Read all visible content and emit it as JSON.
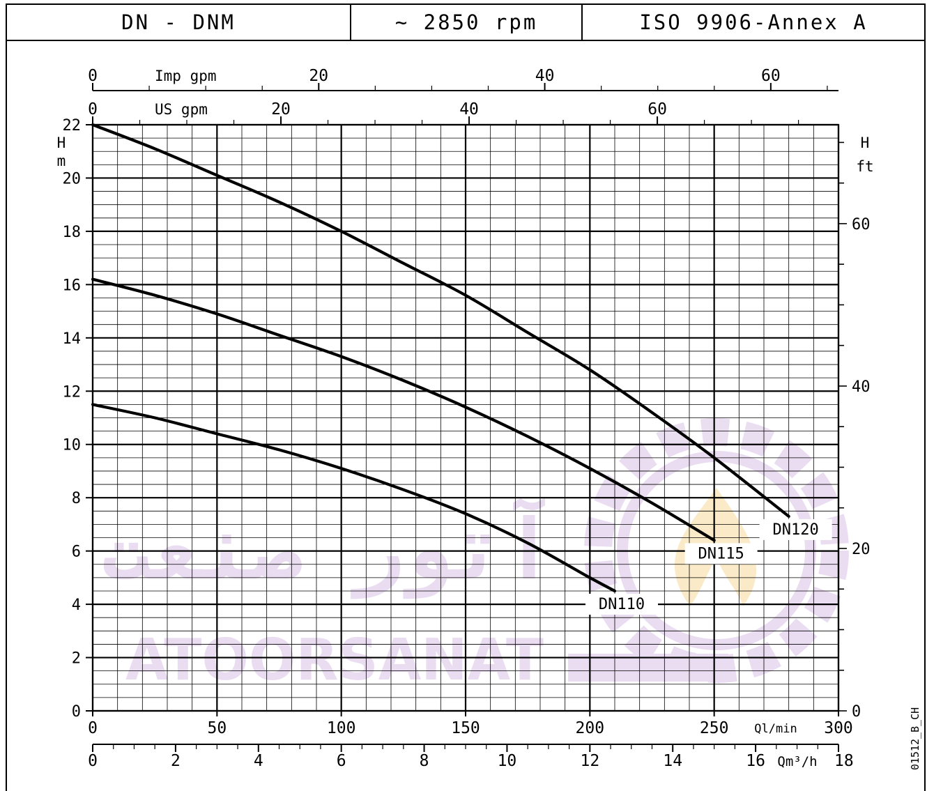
{
  "header": {
    "model": "DN - DNM",
    "speed": "~ 2850 rpm",
    "standard": "ISO 9906-Annex A"
  },
  "side_code": "01512_B_CH",
  "watermark": {
    "brand_latin": "ATOORSANAT",
    "brand_arabic": "آتور صنعت",
    "color": "#d9c2e6"
  },
  "chart_data": {
    "type": "line",
    "x_axes": {
      "qlmin": {
        "label": "Ql/min",
        "range": [
          0,
          300
        ],
        "ticks": [
          0,
          50,
          100,
          150,
          200,
          250,
          300
        ]
      },
      "qm3h": {
        "label": "Qm³/h",
        "range": [
          0,
          18
        ],
        "ticks": [
          0,
          2,
          4,
          6,
          8,
          10,
          12,
          14,
          16,
          18
        ]
      },
      "us_gpm": {
        "label": "US gpm",
        "ticks": [
          0,
          20,
          40,
          60
        ]
      },
      "imp_gpm": {
        "label": "Imp gpm",
        "ticks": [
          0,
          20,
          40,
          60
        ]
      }
    },
    "y_axes": {
      "h_m": {
        "label_top": "H",
        "label_unit": "m",
        "range": [
          0,
          22
        ],
        "ticks": [
          0,
          2,
          4,
          6,
          8,
          10,
          12,
          14,
          16,
          18,
          20,
          22
        ]
      },
      "h_ft": {
        "label_top": "H",
        "label_unit": "ft",
        "ticks": [
          0,
          20,
          40,
          60
        ]
      }
    },
    "grid": true,
    "series": [
      {
        "name": "DN110",
        "x": [
          0,
          25,
          50,
          75,
          100,
          125,
          150,
          175,
          200,
          210
        ],
        "y": [
          11.5,
          11.0,
          10.4,
          9.8,
          9.1,
          8.3,
          7.4,
          6.3,
          5.0,
          4.5
        ]
      },
      {
        "name": "DN115",
        "x": [
          0,
          25,
          50,
          75,
          100,
          125,
          150,
          175,
          200,
          225,
          250
        ],
        "y": [
          16.2,
          15.6,
          14.9,
          14.1,
          13.3,
          12.4,
          11.4,
          10.3,
          9.1,
          7.8,
          6.4
        ]
      },
      {
        "name": "DN120",
        "x": [
          0,
          25,
          50,
          75,
          100,
          125,
          150,
          175,
          200,
          225,
          250,
          280
        ],
        "y": [
          22.0,
          21.1,
          20.1,
          19.1,
          18.0,
          16.8,
          15.6,
          14.2,
          12.8,
          11.2,
          9.5,
          7.3
        ]
      }
    ]
  }
}
